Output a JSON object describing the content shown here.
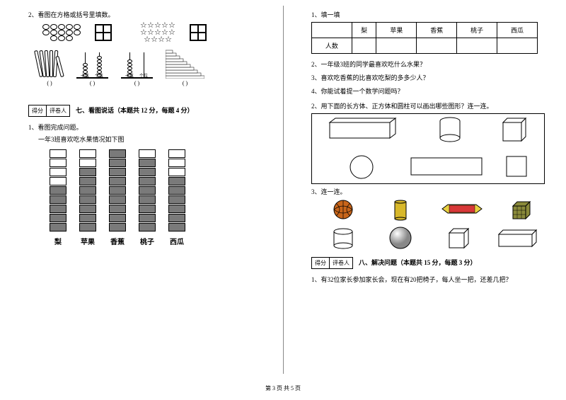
{
  "footer": "第 3 页 共 5 页",
  "left": {
    "q2": "2、看图在方格或括号里填数。",
    "paren_labels": [
      "(    )",
      "(    )",
      "(    )",
      "(    )",
      "(    )"
    ],
    "score": {
      "c1": "得分",
      "c2": "评卷人"
    },
    "section7": "七、看图说话（本题共 12 分，每题 4 分）",
    "q1_title": "1、看图完成问题。",
    "q1_sub": "一年3班喜欢吃水果情况如下图",
    "bars": {
      "labels": [
        "梨",
        "苹果",
        "香蕉",
        "桃子",
        "西瓜"
      ],
      "total_cells": 9,
      "filled": [
        5,
        7,
        9,
        8,
        6
      ]
    }
  },
  "right": {
    "fill1_title": "1、填一填",
    "table_headers": [
      "",
      "梨",
      "苹果",
      "香蕉",
      "桃子",
      "西瓜"
    ],
    "table_row_label": "人数",
    "sub_q2": "2、一年级3班的同学最喜欢吃什么水果？",
    "sub_q3": "3、喜欢吃香蕉的比喜欢吃梨的多多少人？",
    "sub_q4": "4、你能试着提一个数学问题吗？",
    "q2_shapes": "2、用下面的长方体、正方体和圆柱可以画出哪些图形？连一连。",
    "q3_connect": "3、连一连。",
    "score": {
      "c1": "得分",
      "c2": "评卷人"
    },
    "section8": "八、解决问题（本题共 15 分，每题 3 分）",
    "q8_1": "1、有32位家长参加家长会，现在有20把椅子，每人坐一把，还差几把？"
  },
  "colors": {
    "text": "#000000",
    "bg": "#ffffff",
    "bar_fill": "#7a7a7a",
    "ball_orange": "#c8651a",
    "can_yellow": "#d8b82a",
    "snack_red": "#d83838",
    "snack_yellow": "#e8d040",
    "cube_mix": "#8a8a3a"
  }
}
